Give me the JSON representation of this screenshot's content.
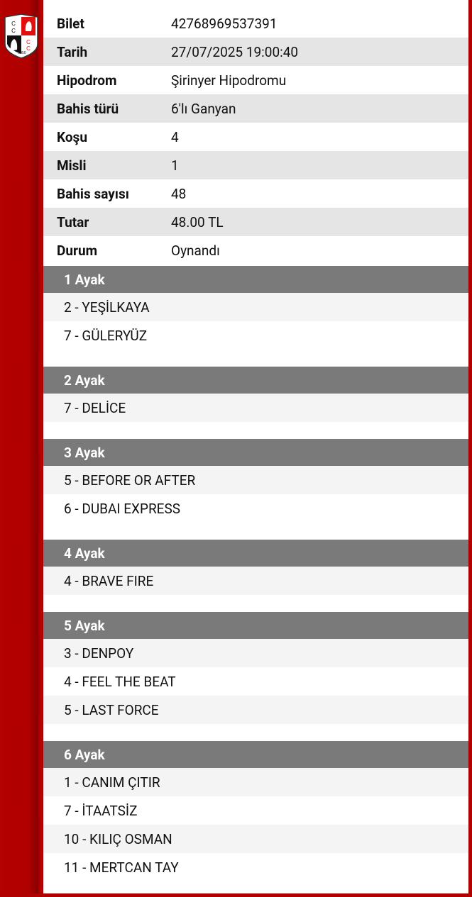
{
  "logo_text": "CC 1950",
  "info": [
    {
      "label": "Bilet",
      "value": "42768969537391"
    },
    {
      "label": "Tarih",
      "value": "27/07/2025 19:00:40"
    },
    {
      "label": "Hipodrom",
      "value": "Şirinyer Hipodromu"
    },
    {
      "label": "Bahis türü",
      "value": "6'lı Ganyan"
    },
    {
      "label": "Koşu",
      "value": "4"
    },
    {
      "label": "Misli",
      "value": "1"
    },
    {
      "label": "Bahis sayısı",
      "value": "48"
    },
    {
      "label": "Tutar",
      "value": "48.00 TL"
    },
    {
      "label": "Durum",
      "value": "Oynandı"
    }
  ],
  "legs": [
    {
      "title": "1 Ayak",
      "horses": [
        "2 - YEŞİLKAYA",
        "7 - GÜLERYÜZ"
      ]
    },
    {
      "title": "2 Ayak",
      "horses": [
        "7 - DELİCE"
      ]
    },
    {
      "title": "3 Ayak",
      "horses": [
        "5 - BEFORE OR AFTER",
        "6 - DUBAI EXPRESS"
      ]
    },
    {
      "title": "4 Ayak",
      "horses": [
        "4 - BRAVE FIRE"
      ]
    },
    {
      "title": "5 Ayak",
      "horses": [
        "3 - DENPOY",
        "4 - FEEL THE BEAT",
        "5 - LAST FORCE"
      ]
    },
    {
      "title": "6 Ayak",
      "horses": [
        "1 - CANIM ÇITIR",
        "7 - İTAATSİZ",
        "10 - KILIÇ OSMAN",
        "11 - MERTCAN TAY"
      ]
    }
  ],
  "colors": {
    "brand": "#b00000",
    "header": "#7a7a7a",
    "alt_row": "#e5e5e5"
  }
}
